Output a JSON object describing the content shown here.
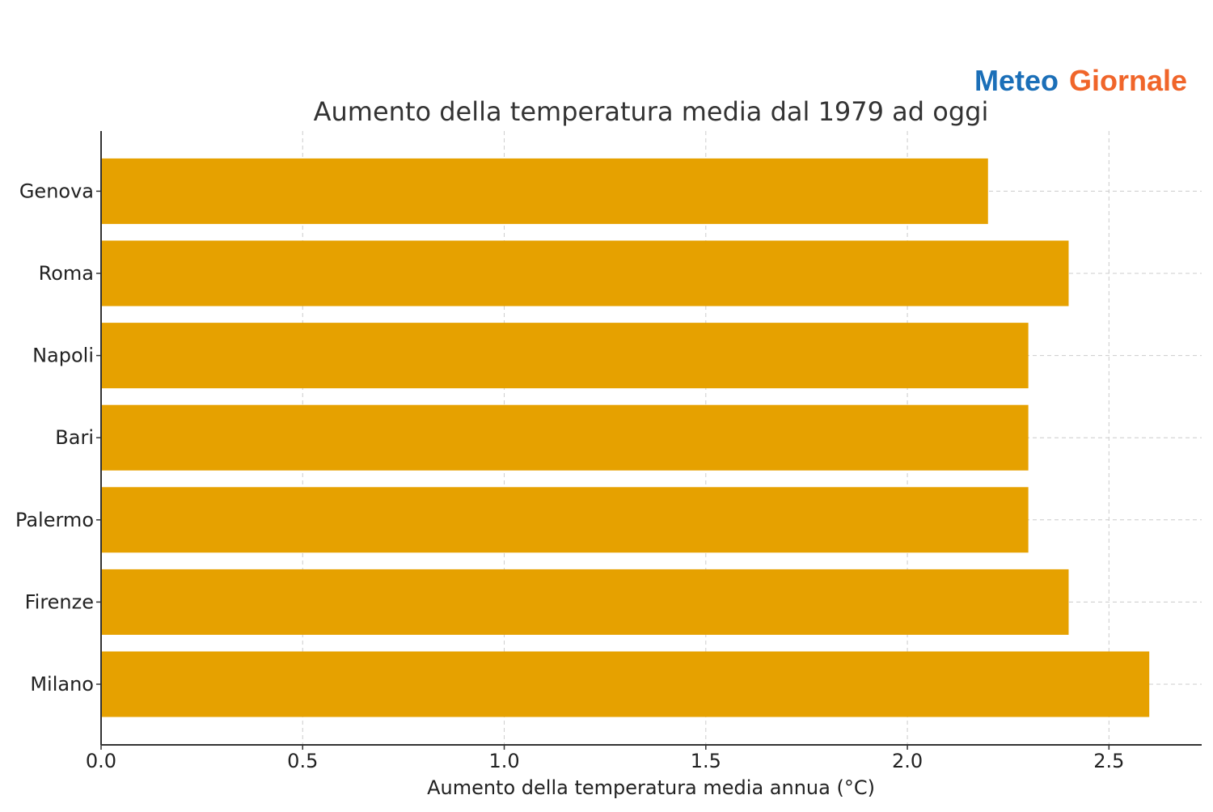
{
  "logo": {
    "part1": "Meteo",
    "part2": "Giornale",
    "color1": "#1b6fb8",
    "color2": "#f0652a"
  },
  "chart_data": {
    "type": "bar",
    "orientation": "horizontal",
    "title": "Aumento della temperatura media dal 1979 ad oggi",
    "xlabel": "Aumento della temperatura media annua (°C)",
    "ylabel": "",
    "categories": [
      "Milano",
      "Firenze",
      "Palermo",
      "Bari",
      "Napoli",
      "Roma",
      "Genova"
    ],
    "values": [
      2.6,
      2.4,
      2.3,
      2.3,
      2.3,
      2.4,
      2.2
    ],
    "xlim": [
      0,
      2.73
    ],
    "xticks": [
      "0.0",
      "0.5",
      "1.0",
      "1.5",
      "2.0",
      "2.5"
    ],
    "grid": true,
    "bar_color": "#e6a100",
    "grid_color": "#cccccc",
    "axis_color": "#333333",
    "text_color": "#222222"
  }
}
